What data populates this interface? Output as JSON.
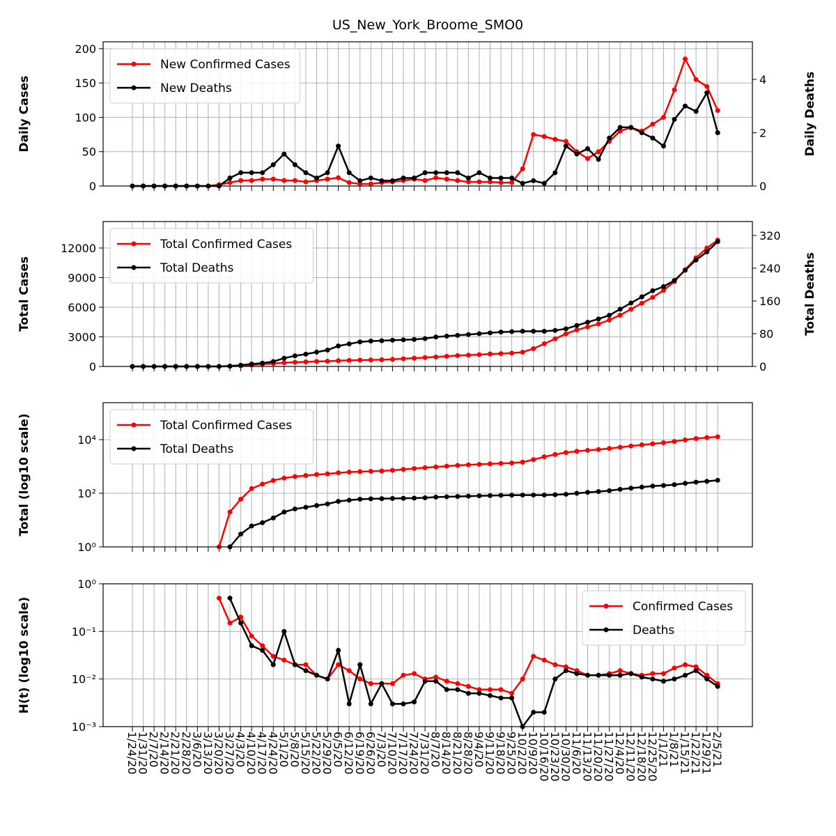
{
  "chart_data": [
    {
      "type": "line",
      "title": "US_New_York_Broome_SMO0",
      "y_label": "Daily Cases",
      "y2_label": "Daily Deaths",
      "ylim": [
        0,
        210
      ],
      "yticks": [
        0,
        50,
        100,
        150,
        200
      ],
      "y2lim": [
        0,
        5.41
      ],
      "y2ticks": [
        0,
        2,
        4
      ],
      "grid": true,
      "legend": "upper left",
      "series": [
        {
          "name": "New Confirmed Cases",
          "color": "#ff0000",
          "values": [
            0,
            0,
            0,
            0,
            0,
            0,
            0,
            0,
            2,
            5,
            8,
            8,
            10,
            10,
            8,
            8,
            6,
            8,
            10,
            12,
            5,
            3,
            3,
            5,
            6,
            8,
            10,
            8,
            12,
            10,
            8,
            6,
            6,
            6,
            5,
            5,
            25,
            75,
            72,
            68,
            65,
            50,
            40,
            50,
            65,
            80,
            85,
            80,
            90,
            100,
            140,
            185,
            155,
            145,
            110
          ]
        },
        {
          "name": "New Deaths",
          "color": "#000000",
          "axis": "y2",
          "values": [
            0,
            0,
            0,
            0,
            0,
            0,
            0,
            0,
            0,
            0.3,
            0.5,
            0.5,
            0.5,
            0.8,
            1.2,
            0.8,
            0.5,
            0.3,
            0.5,
            1.5,
            0.5,
            0.2,
            0.3,
            0.2,
            0.2,
            0.3,
            0.3,
            0.5,
            0.5,
            0.5,
            0.5,
            0.3,
            0.5,
            0.3,
            0.3,
            0.3,
            0.1,
            0.2,
            0.1,
            0.5,
            1.5,
            1.2,
            1.4,
            1.0,
            1.8,
            2.2,
            2.2,
            2.0,
            1.8,
            1.5,
            2.5,
            3.0,
            2.8,
            3.5,
            2.0
          ]
        }
      ]
    },
    {
      "type": "line",
      "y_label": "Total Cases",
      "y2_label": "Total Deaths",
      "ylim": [
        0,
        14680
      ],
      "yticks": [
        0,
        3000,
        6000,
        9000,
        12000
      ],
      "y2lim": [
        0,
        354
      ],
      "y2ticks": [
        0,
        80,
        160,
        240,
        320
      ],
      "grid": true,
      "legend": "upper left",
      "series": [
        {
          "name": "Total Confirmed Cases",
          "color": "#ff0000",
          "values": [
            0,
            0,
            0,
            0,
            0,
            0,
            0,
            0,
            1,
            20,
            60,
            150,
            220,
            300,
            370,
            420,
            460,
            500,
            530,
            580,
            620,
            640,
            660,
            680,
            720,
            780,
            840,
            900,
            960,
            1030,
            1100,
            1150,
            1200,
            1260,
            1300,
            1350,
            1450,
            1800,
            2300,
            2800,
            3300,
            3700,
            4000,
            4300,
            4700,
            5200,
            5800,
            6400,
            7000,
            7700,
            8600,
            9800,
            11000,
            12000,
            12800
          ]
        },
        {
          "name": "Total Deaths",
          "color": "#000000",
          "axis": "y2",
          "values": [
            0,
            0,
            0,
            0,
            0,
            0,
            0,
            0,
            0,
            1,
            3,
            6,
            8,
            12,
            20,
            26,
            30,
            35,
            40,
            50,
            55,
            60,
            62,
            63,
            64,
            65,
            66,
            68,
            72,
            74,
            76,
            78,
            80,
            82,
            84,
            85,
            86,
            86,
            86,
            88,
            92,
            100,
            108,
            116,
            125,
            140,
            155,
            170,
            185,
            195,
            210,
            235,
            260,
            280,
            305
          ]
        }
      ]
    },
    {
      "type": "line",
      "y_label": "Total (log10 scale)",
      "log_scale": true,
      "ylim": [
        1,
        240000
      ],
      "yticks": [
        {
          "value": 1,
          "label": "10⁰"
        },
        {
          "value": 100,
          "label": "10²"
        },
        {
          "value": 10000,
          "label": "10⁴"
        }
      ],
      "grid": true,
      "legend": "upper left",
      "series": [
        {
          "name": "Total Confirmed Cases",
          "color": "#ff0000",
          "values": [
            null,
            null,
            null,
            null,
            null,
            null,
            null,
            null,
            1,
            20,
            60,
            150,
            220,
            300,
            370,
            420,
            460,
            500,
            530,
            580,
            620,
            640,
            660,
            680,
            720,
            780,
            840,
            900,
            960,
            1030,
            1100,
            1150,
            1200,
            1260,
            1300,
            1350,
            1450,
            1800,
            2300,
            2800,
            3300,
            3700,
            4000,
            4300,
            4700,
            5200,
            5800,
            6400,
            7000,
            7700,
            8600,
            9800,
            11000,
            12000,
            12800
          ]
        },
        {
          "name": "Total Deaths",
          "color": "#000000",
          "values": [
            null,
            null,
            null,
            null,
            null,
            null,
            null,
            null,
            null,
            1,
            3,
            6,
            8,
            12,
            20,
            26,
            30,
            35,
            40,
            50,
            55,
            60,
            62,
            63,
            64,
            65,
            66,
            68,
            72,
            74,
            76,
            78,
            80,
            82,
            84,
            85,
            86,
            86,
            86,
            88,
            92,
            100,
            108,
            116,
            125,
            140,
            155,
            170,
            185,
            195,
            210,
            235,
            260,
            280,
            305
          ]
        }
      ]
    },
    {
      "type": "line",
      "y_label": "H(t) (log10 scale)",
      "log_scale": true,
      "ylim": [
        0.001,
        1
      ],
      "yticks": [
        {
          "value": 0.001,
          "label": "10⁻³"
        },
        {
          "value": 0.01,
          "label": "10⁻²"
        },
        {
          "value": 0.1,
          "label": "10⁻¹"
        },
        {
          "value": 1,
          "label": "10⁰"
        }
      ],
      "grid": true,
      "legend": "upper right",
      "categories": [
        "1/24/20",
        "1/31/20",
        "2/7/20",
        "2/14/20",
        "2/21/20",
        "2/28/20",
        "3/6/20",
        "3/13/20",
        "3/20/20",
        "3/27/20",
        "4/3/20",
        "4/10/20",
        "4/17/20",
        "4/24/20",
        "5/1/20",
        "5/8/20",
        "5/15/20",
        "5/22/20",
        "5/29/20",
        "6/5/20",
        "6/12/20",
        "6/19/20",
        "6/26/20",
        "7/3/20",
        "7/10/20",
        "7/17/20",
        "7/24/20",
        "7/31/20",
        "8/7/20",
        "8/14/20",
        "8/21/20",
        "8/28/20",
        "9/4/20",
        "9/11/20",
        "9/18/20",
        "9/25/20",
        "10/2/20",
        "10/9/20",
        "10/16/20",
        "10/23/20",
        "10/30/20",
        "11/6/20",
        "11/13/20",
        "11/20/20",
        "11/27/20",
        "12/4/20",
        "12/11/20",
        "12/18/20",
        "12/25/20",
        "1/1/21",
        "1/8/21",
        "1/15/21",
        "1/22/21",
        "1/29/21",
        "2/5/21"
      ],
      "series": [
        {
          "name": "Confirmed Cases",
          "color": "#ff0000",
          "values": [
            null,
            null,
            null,
            null,
            null,
            null,
            null,
            null,
            0.5,
            0.15,
            0.2,
            0.08,
            0.05,
            0.03,
            0.025,
            0.02,
            0.02,
            0.012,
            0.01,
            0.02,
            0.015,
            0.01,
            0.008,
            0.008,
            0.008,
            0.012,
            0.013,
            0.01,
            0.011,
            0.009,
            0.008,
            0.007,
            0.006,
            0.006,
            0.006,
            0.005,
            0.01,
            0.03,
            0.025,
            0.02,
            0.018,
            0.015,
            0.012,
            0.012,
            0.013,
            0.015,
            0.013,
            0.012,
            0.013,
            0.013,
            0.017,
            0.02,
            0.018,
            0.012,
            0.008
          ]
        },
        {
          "name": "Deaths",
          "color": "#000000",
          "values": [
            null,
            null,
            null,
            null,
            null,
            null,
            null,
            null,
            null,
            0.5,
            0.15,
            0.05,
            0.04,
            0.02,
            0.1,
            0.02,
            0.015,
            0.012,
            0.01,
            0.04,
            0.003,
            0.02,
            0.003,
            0.008,
            0.003,
            0.003,
            0.0033,
            0.009,
            0.009,
            0.006,
            0.006,
            0.005,
            0.005,
            0.0045,
            0.004,
            0.004,
            0.001,
            0.002,
            0.002,
            0.01,
            0.015,
            0.013,
            0.012,
            0.012,
            0.012,
            0.012,
            0.013,
            0.011,
            0.01,
            0.009,
            0.01,
            0.012,
            0.015,
            0.01,
            0.007
          ]
        }
      ]
    }
  ]
}
